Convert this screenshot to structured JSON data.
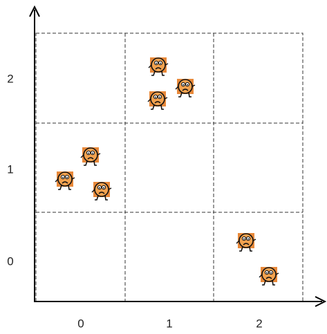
{
  "x_axis": {
    "labels": [
      "0",
      "1",
      "2"
    ]
  },
  "y_axis": {
    "labels": [
      "0",
      "1",
      "2"
    ]
  }
}
